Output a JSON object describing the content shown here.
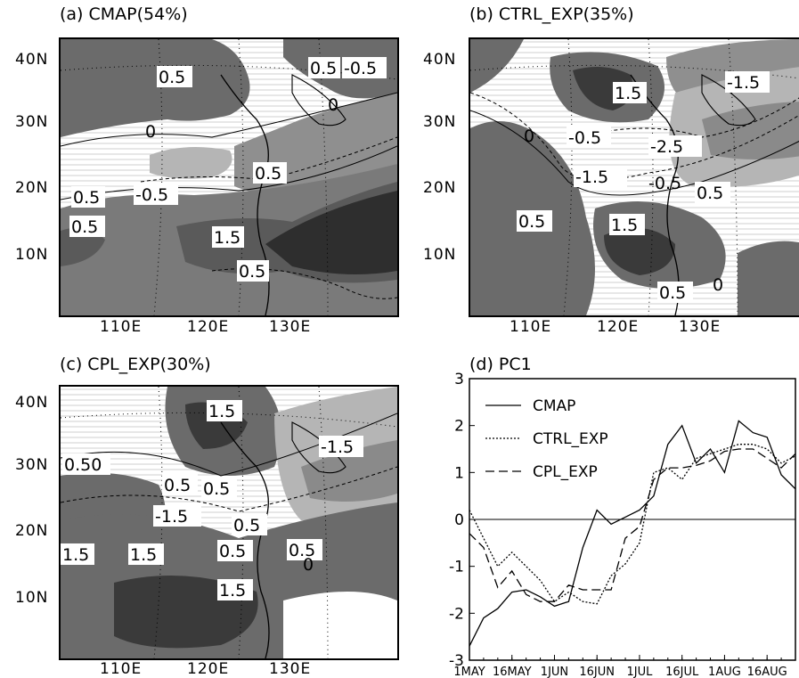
{
  "panels": {
    "a": {
      "title": "(a) CMAP(54%)",
      "labels": [
        "0.5",
        "0.5",
        "-0.5",
        "0",
        "0",
        "-0.5",
        "0.5",
        "0.5",
        "0.5",
        "1.5",
        "0.5",
        "0.5"
      ]
    },
    "b": {
      "title": "(b) CTRL_EXP(35%)",
      "labels": [
        "1.5",
        "-1.5",
        "0",
        "-0.5",
        "-2.5",
        "-1.5",
        "-0.5",
        "0.5",
        "0.5",
        "1.5",
        "0.5",
        "0"
      ]
    },
    "c": {
      "title": "(c) CPL_EXP(30%)",
      "labels": [
        "1.5",
        "0.50",
        "-1.5",
        "0.5",
        "0.5",
        "-1.5",
        "0.5",
        "0.5",
        "1.5",
        "1.5",
        "1.5",
        "0.5",
        "0"
      ]
    }
  },
  "map_axes": {
    "lat_ticks": [
      "40N",
      "30N",
      "20N",
      "10N"
    ],
    "lon_ticks": [
      "110E",
      "120E",
      "130E"
    ]
  },
  "chart_data": {
    "type": "line",
    "title": "(d) PC1",
    "x": [
      "1MAY",
      "6MAY",
      "11MAY",
      "16MAY",
      "21MAY",
      "26MAY",
      "1JUN",
      "6JUN",
      "11JUN",
      "16JUN",
      "21JUN",
      "26JUN",
      "1JUL",
      "6JUL",
      "11JUL",
      "16JUL",
      "21JUL",
      "26JUL",
      "1AUG",
      "6AUG",
      "11AUG",
      "16AUG",
      "21AUG",
      "26AUG"
    ],
    "xtick_labels": [
      "1MAY",
      "16MAY",
      "1JUN",
      "16JUN",
      "1JUL",
      "16JUL",
      "1AUG",
      "16AUG"
    ],
    "yticks": [
      -3,
      -2,
      -1,
      0,
      1,
      2,
      3
    ],
    "ylim": [
      -3,
      3
    ],
    "series": [
      {
        "name": "CMAP",
        "style": "solid",
        "values": [
          -2.7,
          -2.1,
          -1.9,
          -1.55,
          -1.5,
          -1.65,
          -1.85,
          -1.75,
          -0.6,
          0.2,
          -0.1,
          0.05,
          0.2,
          0.5,
          1.6,
          2.0,
          1.2,
          1.5,
          1.0,
          2.1,
          1.85,
          1.75,
          0.95,
          0.65
        ]
      },
      {
        "name": "CTRL_EXP",
        "style": "dotted",
        "values": [
          0.2,
          -0.4,
          -1.0,
          -0.7,
          -1.0,
          -1.3,
          -1.75,
          -1.55,
          -1.75,
          -1.8,
          -1.2,
          -0.95,
          -0.5,
          1.0,
          1.1,
          0.85,
          1.3,
          1.4,
          1.5,
          1.6,
          1.6,
          1.5,
          1.2,
          1.35
        ]
      },
      {
        "name": "CPL_EXP",
        "style": "dashed",
        "values": [
          -0.3,
          -0.6,
          -1.45,
          -1.1,
          -1.6,
          -1.75,
          -1.75,
          -1.4,
          -1.5,
          -1.5,
          -1.5,
          -0.4,
          -0.15,
          0.85,
          1.1,
          1.1,
          1.15,
          1.25,
          1.45,
          1.5,
          1.5,
          1.3,
          1.1,
          1.4
        ]
      }
    ],
    "zero_line": 0,
    "legend": "top-left"
  }
}
